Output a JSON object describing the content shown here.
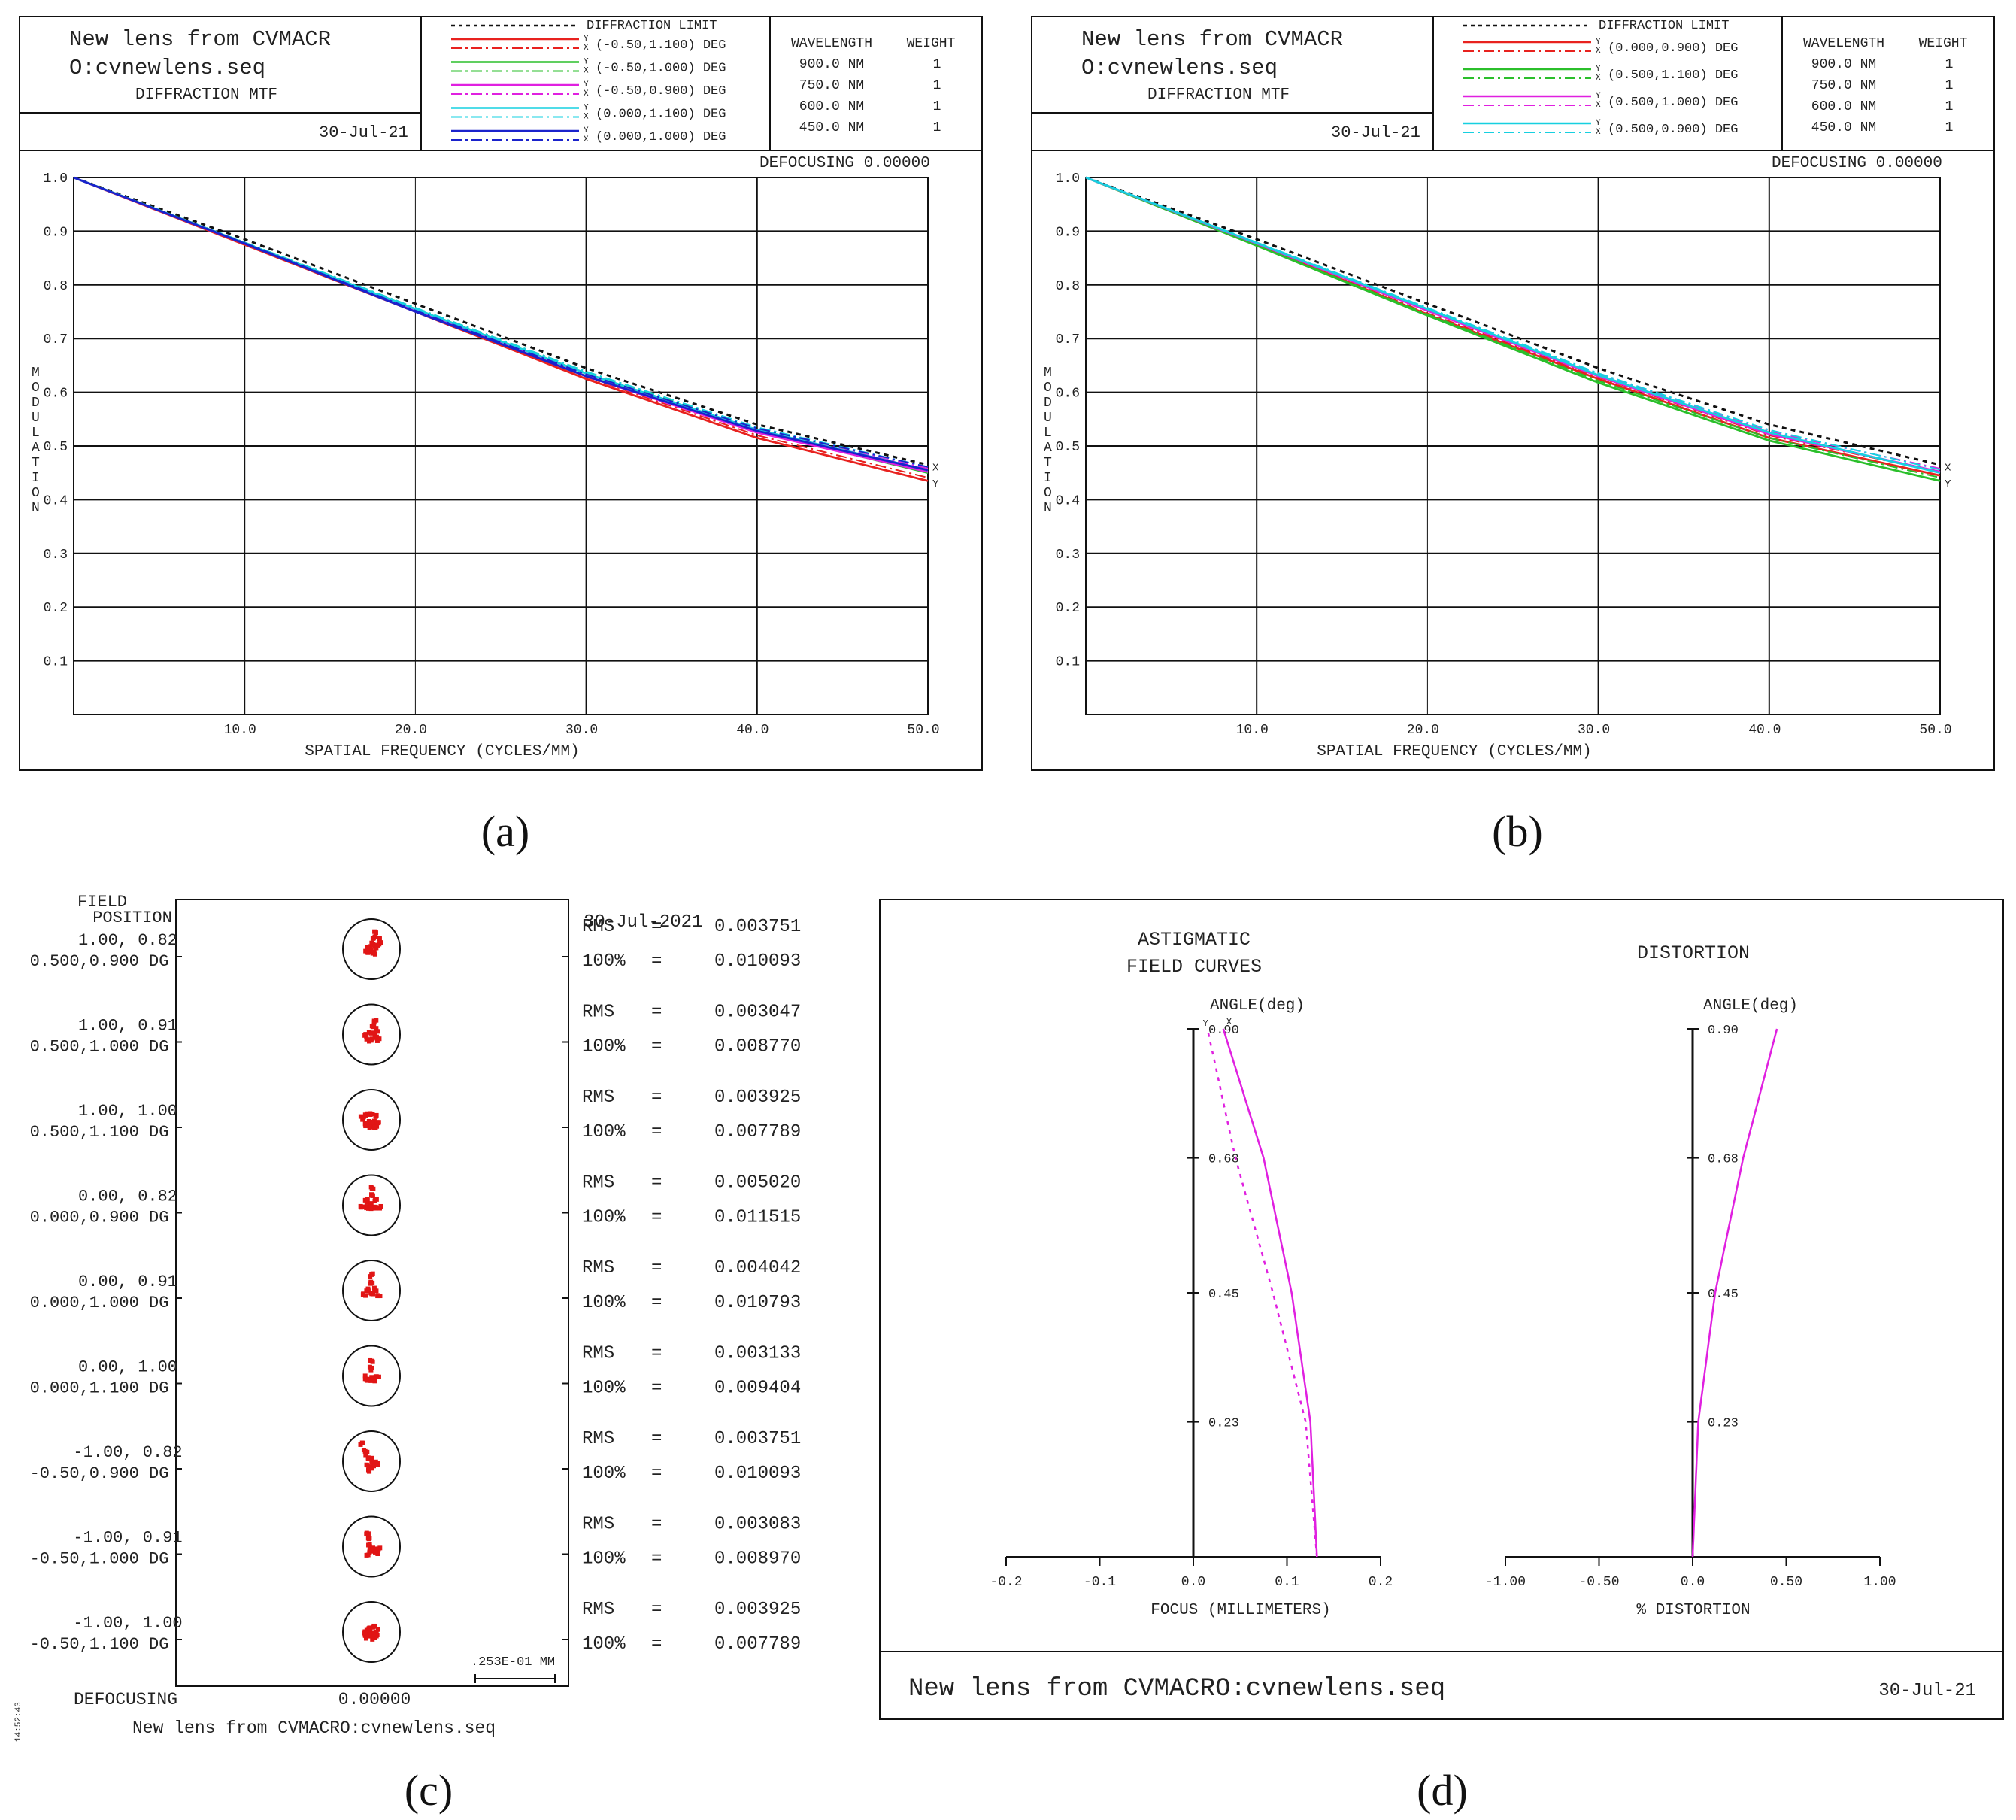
{
  "colors": {
    "red": "#e8221f",
    "green": "#2bbf2b",
    "magenta": "#e020e0",
    "cyan": "#16d0e0",
    "blue": "#1a22cc",
    "black": "#111111",
    "dot": "#e11515"
  },
  "panel_labels": [
    "(a)",
    "(b)",
    "(c)",
    "(d)"
  ],
  "mtf_panels": [
    {
      "title1": "New lens from CVMACR",
      "title2": "O:cvnewlens.seq",
      "subtitle": "DIFFRACTION MTF",
      "date": "30-Jul-21",
      "diffraction_limit": "DIFFRACTION LIMIT",
      "legend": [
        {
          "label": "(-0.50,1.100) DEG",
          "color": "red"
        },
        {
          "label": "(-0.50,1.000) DEG",
          "color": "green"
        },
        {
          "label": "(-0.50,0.900) DEG",
          "color": "magenta"
        },
        {
          "label": "(0.000,1.100) DEG",
          "color": "cyan"
        },
        {
          "label": "(0.000,1.000) DEG",
          "color": "blue"
        }
      ],
      "defocusing": "DEFOCUSING  0.00000"
    },
    {
      "title1": "New lens from CVMACR",
      "title2": "O:cvnewlens.seq",
      "subtitle": "DIFFRACTION MTF",
      "date": "30-Jul-21",
      "diffraction_limit": "DIFFRACTION LIMIT",
      "legend": [
        {
          "label": "(0.000,0.900) DEG",
          "color": "red"
        },
        {
          "label": "(0.500,1.100) DEG",
          "color": "green"
        },
        {
          "label": "(0.500,1.000) DEG",
          "color": "magenta"
        },
        {
          "label": "(0.500,0.900) DEG",
          "color": "cyan"
        }
      ],
      "defocusing": "DEFOCUSING  0.00000"
    }
  ],
  "wavelength_table": {
    "headers": [
      "WAVELENGTH",
      "WEIGHT"
    ],
    "rows": [
      [
        "900.0 NM",
        "1"
      ],
      [
        "750.0 NM",
        "1"
      ],
      [
        "600.0 NM",
        "1"
      ],
      [
        "450.0 NM",
        "1"
      ]
    ]
  },
  "mtf_axis": {
    "ylabel": "MODULATION",
    "xlabel": "SPATIAL FREQUENCY (CYCLES/MM)",
    "xticks": [
      "10.0",
      "20.0",
      "30.0",
      "40.0",
      "50.0"
    ],
    "yticks": [
      "1.0",
      "0.9",
      "0.8",
      "0.7",
      "0.6",
      "0.5",
      "0.4",
      "0.3",
      "0.2",
      "0.1"
    ],
    "end_x": "X",
    "end_y": "Y"
  },
  "spot": {
    "header1": "FIELD",
    "header2": "POSITION",
    "date": "30-Jul-2021",
    "rows": [
      {
        "pos1": "1.00, 0.82",
        "pos2": "0.500,0.900 DG",
        "rms": "0.003751",
        "full": "0.010093"
      },
      {
        "pos1": "1.00, 0.91",
        "pos2": "0.500,1.000 DG",
        "rms": "0.003047",
        "full": "0.008770"
      },
      {
        "pos1": "1.00, 1.00",
        "pos2": "0.500,1.100 DG",
        "rms": "0.003925",
        "full": "0.007789"
      },
      {
        "pos1": "0.00, 0.82",
        "pos2": "0.000,0.900 DG",
        "rms": "0.005020",
        "full": "0.011515"
      },
      {
        "pos1": "0.00, 0.91",
        "pos2": "0.000,1.000 DG",
        "rms": "0.004042",
        "full": "0.010793"
      },
      {
        "pos1": "0.00, 1.00",
        "pos2": "0.000,1.100 DG",
        "rms": "0.003133",
        "full": "0.009404"
      },
      {
        "pos1": "-1.00, 0.82",
        "pos2": "-0.50,0.900 DG",
        "rms": "0.003751",
        "full": "0.010093"
      },
      {
        "pos1": "-1.00, 0.91",
        "pos2": "-0.50,1.000 DG",
        "rms": "0.003083",
        "full": "0.008970"
      },
      {
        "pos1": "-1.00, 1.00",
        "pos2": "-0.50,1.100 DG",
        "rms": "0.003925",
        "full": "0.007789"
      }
    ],
    "rms_label": "RMS",
    "full_label": "100%",
    "eq": "=",
    "defocusing_label": "DEFOCUSING",
    "defocusing_value": "0.00000",
    "scale": ".253E-01 MM",
    "footer": "New lens from CVMACRO:cvnewlens.seq",
    "side_stamp": "14:52:43"
  },
  "field_curves": {
    "title1": "ASTIGMATIC",
    "title2": "FIELD CURVES",
    "dist_title": "DISTORTION",
    "angle_label": "ANGLE(deg)",
    "angle_ticks": [
      "0.90",
      "0.68",
      "0.45",
      "0.23"
    ],
    "focus_ticks": [
      "-0.2",
      "-0.1",
      "0.0",
      "0.1",
      "0.2"
    ],
    "focus_label": "FOCUS (MILLIMETERS)",
    "dist_ticks": [
      "-1.00",
      "-0.50",
      "0.0",
      "0.50",
      "1.00"
    ],
    "dist_label": "% DISTORTION",
    "curve_y": "Y",
    "curve_x": "X",
    "footer": "New lens from CVMACRO:cvnewlens.seq",
    "date": "30-Jul-21"
  },
  "chart_data": [
    {
      "type": "line",
      "title": "DIFFRACTION MTF (a)",
      "xlabel": "SPATIAL FREQUENCY (CYCLES/MM)",
      "ylabel": "MODULATION",
      "xlim": [
        0,
        50
      ],
      "ylim": [
        0,
        1.0
      ],
      "x": [
        0,
        10,
        20,
        30,
        40,
        50
      ],
      "series": [
        {
          "name": "DIFFRACTION LIMIT",
          "values": [
            1.0,
            0.885,
            0.765,
            0.645,
            0.54,
            0.465
          ]
        },
        {
          "name": "(-0.50,1.100) DEG",
          "values": [
            1.0,
            0.875,
            0.75,
            0.625,
            0.515,
            0.435
          ]
        },
        {
          "name": "(-0.50,1.000) DEG",
          "values": [
            1.0,
            0.878,
            0.755,
            0.635,
            0.528,
            0.45
          ]
        },
        {
          "name": "(-0.50,0.900) DEG",
          "values": [
            1.0,
            0.877,
            0.752,
            0.63,
            0.525,
            0.452
          ]
        },
        {
          "name": "(0.000,1.100) DEG",
          "values": [
            1.0,
            0.878,
            0.755,
            0.635,
            0.53,
            0.455
          ]
        },
        {
          "name": "(0.000,1.000) DEG",
          "values": [
            1.0,
            0.877,
            0.75,
            0.63,
            0.528,
            0.455
          ]
        }
      ]
    },
    {
      "type": "line",
      "title": "DIFFRACTION MTF (b)",
      "xlabel": "SPATIAL FREQUENCY (CYCLES/MM)",
      "ylabel": "MODULATION",
      "xlim": [
        0,
        50
      ],
      "ylim": [
        0,
        1.0
      ],
      "x": [
        0,
        10,
        20,
        30,
        40,
        50
      ],
      "series": [
        {
          "name": "DIFFRACTION LIMIT",
          "values": [
            1.0,
            0.885,
            0.765,
            0.645,
            0.54,
            0.465
          ]
        },
        {
          "name": "(0.000,0.900) DEG",
          "values": [
            1.0,
            0.875,
            0.745,
            0.625,
            0.515,
            0.445
          ]
        },
        {
          "name": "(0.500,1.100) DEG",
          "values": [
            1.0,
            0.873,
            0.743,
            0.618,
            0.51,
            0.435
          ]
        },
        {
          "name": "(0.500,1.000) DEG",
          "values": [
            1.0,
            0.877,
            0.752,
            0.63,
            0.522,
            0.452
          ]
        },
        {
          "name": "(0.500,0.900) DEG",
          "values": [
            1.0,
            0.878,
            0.755,
            0.632,
            0.525,
            0.45
          ]
        }
      ]
    },
    {
      "type": "line",
      "title": "ASTIGMATIC FIELD CURVES",
      "xlabel": "FOCUS (MILLIMETERS)",
      "ylabel": "ANGLE(deg)",
      "xlim": [
        -0.2,
        0.2
      ],
      "ylim": [
        0,
        0.9
      ],
      "y": [
        0,
        0.23,
        0.45,
        0.68,
        0.9
      ],
      "series": [
        {
          "name": "X",
          "values": [
            0.132,
            0.125,
            0.105,
            0.075,
            0.032
          ]
        },
        {
          "name": "Y",
          "values": [
            0.132,
            0.12,
            0.085,
            0.045,
            0.015
          ]
        }
      ]
    },
    {
      "type": "line",
      "title": "DISTORTION",
      "xlabel": "% DISTORTION",
      "ylabel": "ANGLE(deg)",
      "xlim": [
        -1.0,
        1.0
      ],
      "ylim": [
        0,
        0.9
      ],
      "y": [
        0,
        0.23,
        0.45,
        0.68,
        0.9
      ],
      "series": [
        {
          "name": "distortion",
          "values": [
            0,
            0.03,
            0.12,
            0.27,
            0.45
          ]
        }
      ]
    }
  ]
}
